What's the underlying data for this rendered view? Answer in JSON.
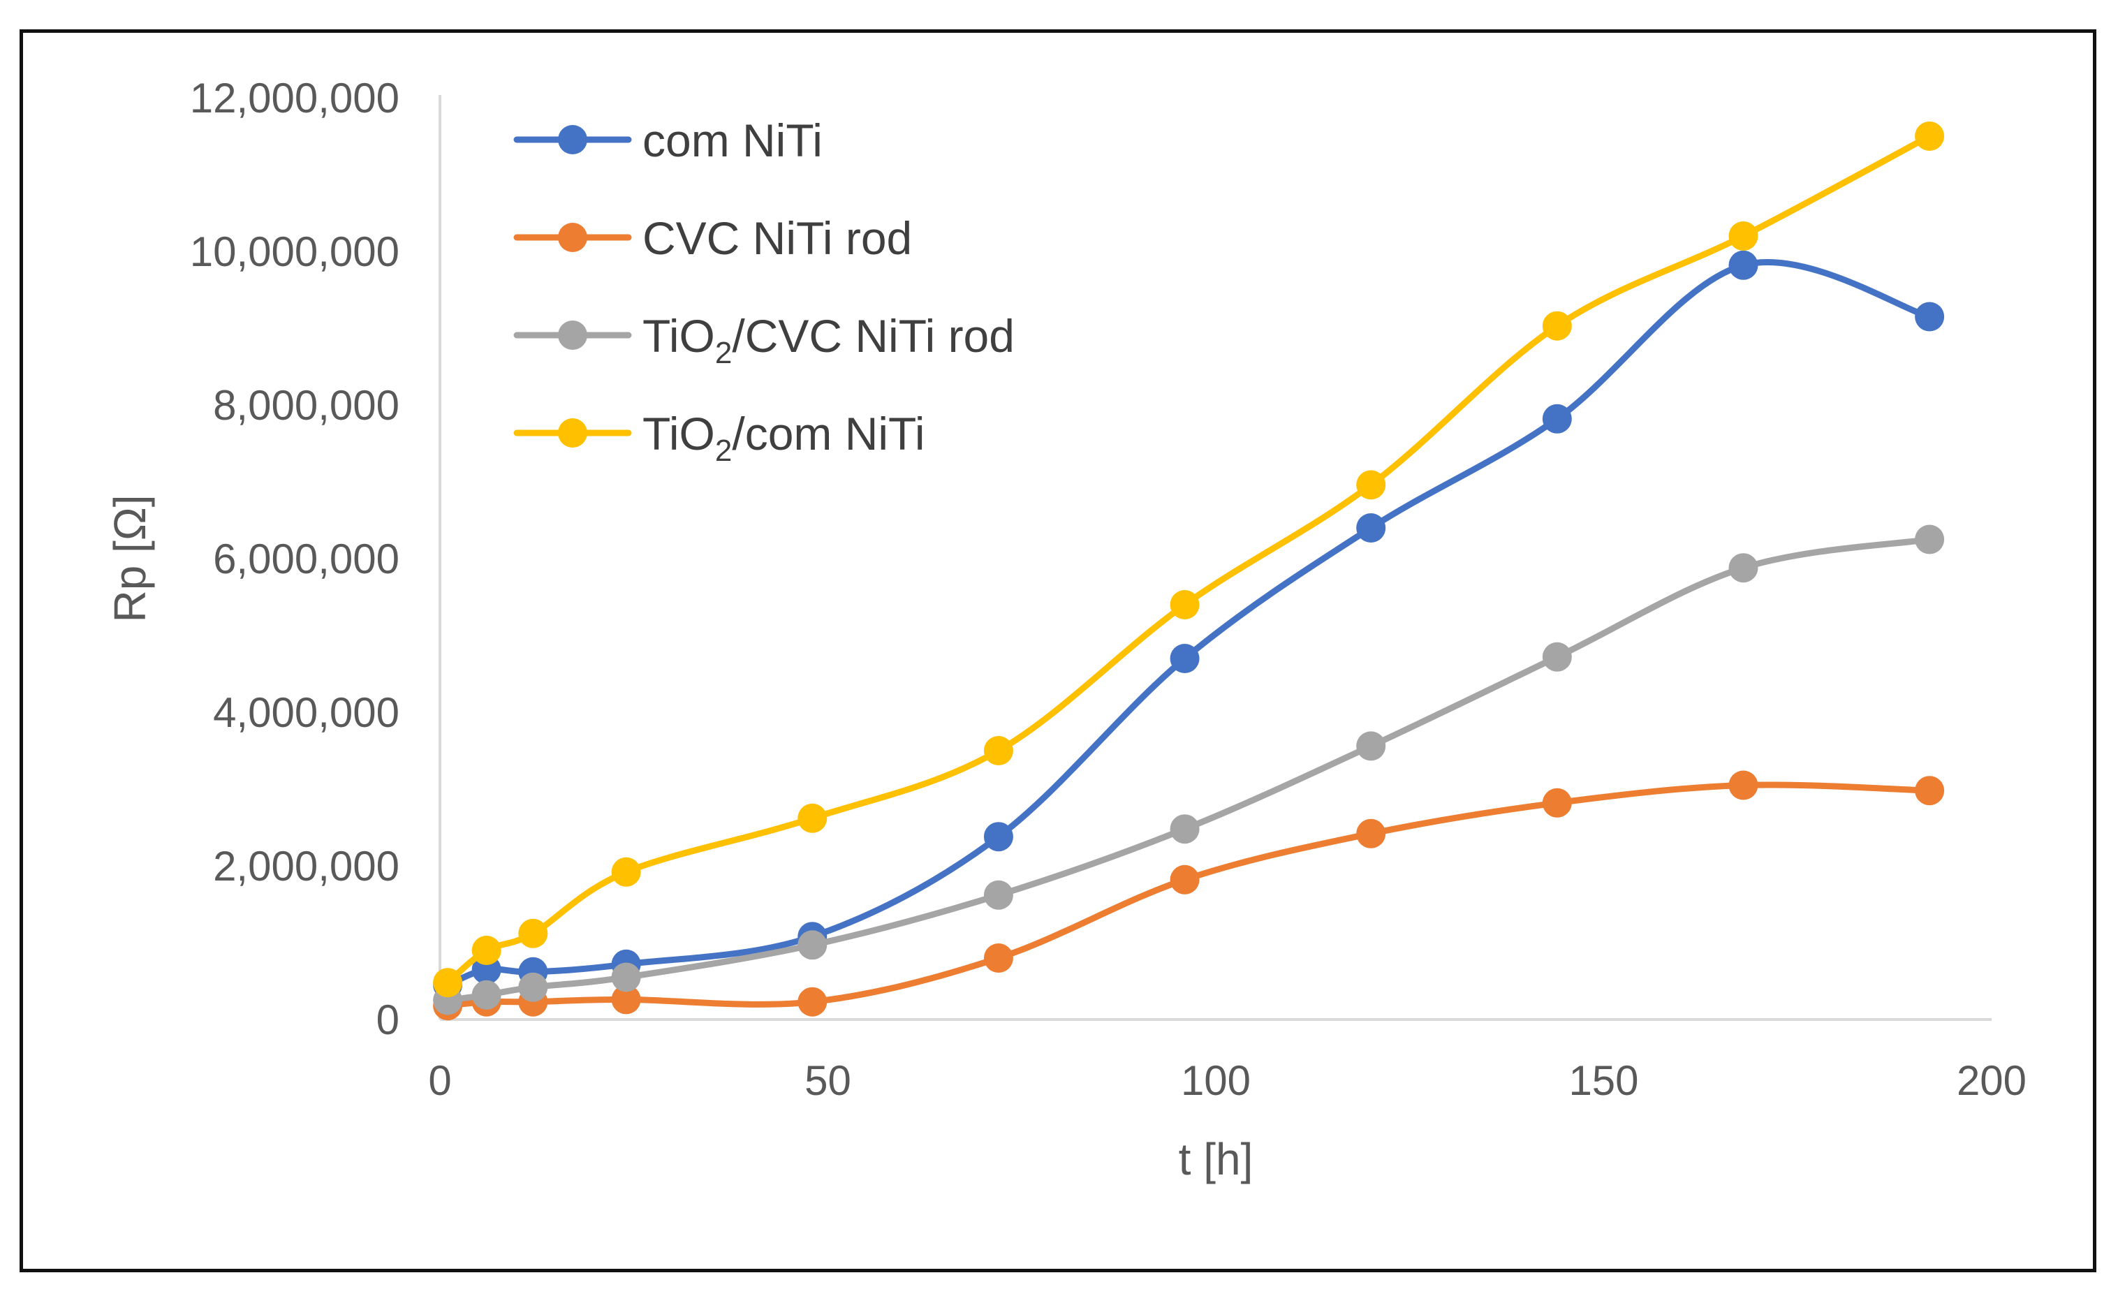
{
  "chart_data": {
    "type": "line",
    "title": "",
    "xlabel": "t [h]",
    "ylabel": "Rp [Ω]",
    "xlim": [
      0,
      200
    ],
    "ylim": [
      0,
      12000000
    ],
    "x_ticks": [
      0,
      50,
      100,
      150,
      200
    ],
    "x_tick_labels": [
      "0",
      "50",
      "100",
      "150",
      "200"
    ],
    "y_ticks": [
      0,
      2000000,
      4000000,
      6000000,
      8000000,
      10000000,
      12000000
    ],
    "y_tick_labels": [
      "0",
      "2,000,000",
      "4,000,000",
      "6,000,000",
      "8,000,000",
      "10,000,000",
      "12,000,000"
    ],
    "grid": false,
    "legend_position": "top-left",
    "x": [
      1,
      6,
      12,
      24,
      48,
      72,
      96,
      120,
      144,
      168,
      192
    ],
    "series": [
      {
        "name": "com NiTi",
        "label_main": "com NiTi",
        "label_sub": "",
        "label_rest": "",
        "color": "#4472c4",
        "values": [
          450000,
          650000,
          620000,
          720000,
          1080000,
          2380000,
          4700000,
          6400000,
          7820000,
          9820000,
          9150000
        ]
      },
      {
        "name": "CVC NiTi rod",
        "label_main": "CVC NiTi rod",
        "label_sub": "",
        "label_rest": "",
        "color": "#ed7d31",
        "values": [
          180000,
          230000,
          230000,
          260000,
          230000,
          800000,
          1820000,
          2420000,
          2820000,
          3050000,
          2980000
        ]
      },
      {
        "name": "TiO2/CVC NiTi rod",
        "label_main": "TiO",
        "label_sub": "2",
        "label_rest": "/CVC NiTi rod",
        "color": "#a5a5a5",
        "values": [
          250000,
          320000,
          420000,
          550000,
          970000,
          1620000,
          2480000,
          3560000,
          4720000,
          5880000,
          6250000
        ]
      },
      {
        "name": "TiO2/com NiTi",
        "label_main": "TiO",
        "label_sub": "2",
        "label_rest": "/com NiTi",
        "color": "#ffc000",
        "values": [
          480000,
          900000,
          1120000,
          1920000,
          2620000,
          3500000,
          5400000,
          6960000,
          9030000,
          10200000,
          11500000
        ]
      }
    ]
  }
}
